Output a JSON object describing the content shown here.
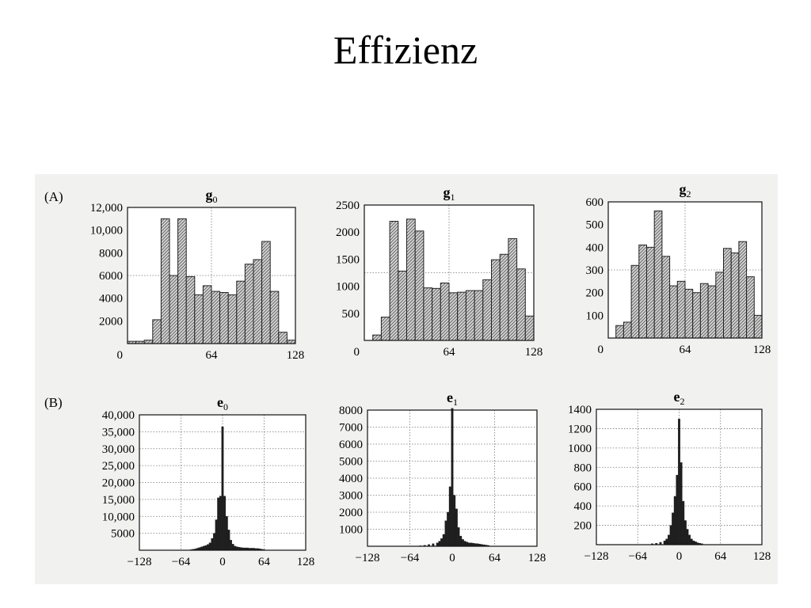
{
  "slide": {
    "title": "Effizienz"
  },
  "panels": [
    {
      "letter": "(A)"
    },
    {
      "letter": "(B)"
    }
  ],
  "chart_data": [
    {
      "type": "bar",
      "row": "A",
      "style": "hatched",
      "title": "g",
      "title_sub": "0",
      "xlim": [
        0,
        128
      ],
      "ylim": [
        0,
        12000
      ],
      "xticks": [
        0,
        64,
        128
      ],
      "xtick_labels": [
        "0",
        "64",
        "128"
      ],
      "yticks": [
        2000,
        4000,
        6000,
        8000,
        10000,
        12000
      ],
      "ytick_labels": [
        "2000",
        "4000",
        "6000",
        "8000",
        "10,000",
        "12,000"
      ],
      "grid": "dotted center lines",
      "bin_width": 6.4,
      "values": [
        200,
        200,
        300,
        2100,
        11000,
        6000,
        11000,
        5900,
        4300,
        5100,
        4600,
        4500,
        4300,
        5500,
        7000,
        7400,
        9000,
        4600,
        1000,
        300
      ]
    },
    {
      "type": "bar",
      "row": "A",
      "style": "hatched",
      "title": "g",
      "title_sub": "1",
      "xlim": [
        0,
        128
      ],
      "ylim": [
        0,
        2500
      ],
      "xticks": [
        0,
        64,
        128
      ],
      "xtick_labels": [
        "0",
        "64",
        "128"
      ],
      "yticks": [
        500,
        1000,
        1500,
        2000,
        2500
      ],
      "ytick_labels": [
        "500",
        "1000",
        "1500",
        "2000",
        "2500"
      ],
      "grid": "dotted center lines",
      "bin_width": 6.4,
      "values": [
        0,
        100,
        430,
        2200,
        1280,
        2240,
        2020,
        970,
        960,
        1060,
        880,
        890,
        920,
        920,
        1120,
        1490,
        1590,
        1880,
        1320,
        450
      ]
    },
    {
      "type": "bar",
      "row": "A",
      "style": "hatched",
      "title": "g",
      "title_sub": "2",
      "xlim": [
        0,
        128
      ],
      "ylim": [
        0,
        600
      ],
      "xticks": [
        0,
        64,
        128
      ],
      "xtick_labels": [
        "0",
        "64",
        "128"
      ],
      "yticks": [
        100,
        200,
        300,
        400,
        500,
        600
      ],
      "ytick_labels": [
        "100",
        "200",
        "300",
        "400",
        "500",
        "600"
      ],
      "grid": "dotted center lines",
      "bin_width": 6.4,
      "values": [
        0,
        55,
        70,
        320,
        410,
        400,
        560,
        360,
        230,
        250,
        215,
        200,
        240,
        230,
        290,
        395,
        375,
        425,
        270,
        100
      ]
    },
    {
      "type": "bar",
      "row": "B",
      "style": "solid",
      "title": "e",
      "title_sub": "0",
      "xlim": [
        -128,
        128
      ],
      "ylim": [
        0,
        40000
      ],
      "xticks": [
        -128,
        -64,
        0,
        64,
        128
      ],
      "xtick_labels": [
        "−128",
        "−64",
        "0",
        "64",
        "128"
      ],
      "yticks": [
        5000,
        10000,
        15000,
        20000,
        25000,
        30000,
        35000,
        40000
      ],
      "ytick_labels": [
        "5000",
        "10,000",
        "15,000",
        "20,000",
        "25,000",
        "30,000",
        "35,000",
        "40,000"
      ],
      "grid": "dotted lines",
      "bin_width": 3.2,
      "bins": [
        {
          "x": -48,
          "y": 200
        },
        {
          "x": -44.8,
          "y": 300
        },
        {
          "x": -41.6,
          "y": 400
        },
        {
          "x": -38.4,
          "y": 600
        },
        {
          "x": -35.2,
          "y": 800
        },
        {
          "x": -32,
          "y": 1000
        },
        {
          "x": -28.8,
          "y": 1200
        },
        {
          "x": -25.6,
          "y": 1400
        },
        {
          "x": -22.4,
          "y": 1700
        },
        {
          "x": -19.2,
          "y": 2200
        },
        {
          "x": -16,
          "y": 3500
        },
        {
          "x": -12.8,
          "y": 5000
        },
        {
          "x": -9.6,
          "y": 9000
        },
        {
          "x": -6.4,
          "y": 15500
        },
        {
          "x": -3.2,
          "y": 16000
        },
        {
          "x": 0,
          "y": 36500
        },
        {
          "x": 3.2,
          "y": 16000
        },
        {
          "x": 6.4,
          "y": 10000
        },
        {
          "x": 9.6,
          "y": 6000
        },
        {
          "x": 12.8,
          "y": 3000
        },
        {
          "x": 16,
          "y": 1800
        },
        {
          "x": 19.2,
          "y": 1200
        },
        {
          "x": 22.4,
          "y": 1000
        },
        {
          "x": 25.6,
          "y": 900
        },
        {
          "x": 28.8,
          "y": 800
        },
        {
          "x": 32,
          "y": 700
        },
        {
          "x": 35.2,
          "y": 700
        },
        {
          "x": 38.4,
          "y": 700
        },
        {
          "x": 41.6,
          "y": 600
        },
        {
          "x": 44.8,
          "y": 600
        },
        {
          "x": 48,
          "y": 600
        },
        {
          "x": 51.2,
          "y": 500
        },
        {
          "x": 54.4,
          "y": 500
        },
        {
          "x": 57.6,
          "y": 400
        },
        {
          "x": 60.8,
          "y": 300
        },
        {
          "x": 64,
          "y": 200
        }
      ]
    },
    {
      "type": "bar",
      "row": "B",
      "style": "solid",
      "title": "e",
      "title_sub": "1",
      "xlim": [
        -128,
        128
      ],
      "ylim": [
        0,
        8000
      ],
      "xticks": [
        -128,
        -64,
        0,
        64,
        128
      ],
      "xtick_labels": [
        "−128",
        "−64",
        "0",
        "64",
        "128"
      ],
      "yticks": [
        1000,
        2000,
        3000,
        4000,
        5000,
        6000,
        7000,
        8000
      ],
      "ytick_labels": [
        "1000",
        "2000",
        "3000",
        "4000",
        "5000",
        "6000",
        "7000",
        "8000"
      ],
      "grid": "dotted lines",
      "bin_width": 3.2,
      "bins": [
        {
          "x": -48,
          "y": 30
        },
        {
          "x": -41.6,
          "y": 60
        },
        {
          "x": -35.2,
          "y": 100
        },
        {
          "x": -28.8,
          "y": 150
        },
        {
          "x": -22.4,
          "y": 200
        },
        {
          "x": -19.2,
          "y": 300
        },
        {
          "x": -16,
          "y": 450
        },
        {
          "x": -12.8,
          "y": 700
        },
        {
          "x": -9.6,
          "y": 1500
        },
        {
          "x": -6.4,
          "y": 2000
        },
        {
          "x": -3.2,
          "y": 3500
        },
        {
          "x": 0,
          "y": 8100
        },
        {
          "x": 3.2,
          "y": 3000
        },
        {
          "x": 6.4,
          "y": 2200
        },
        {
          "x": 9.6,
          "y": 1100
        },
        {
          "x": 12.8,
          "y": 600
        },
        {
          "x": 16,
          "y": 400
        },
        {
          "x": 19.2,
          "y": 300
        },
        {
          "x": 22.4,
          "y": 250
        },
        {
          "x": 25.6,
          "y": 200
        },
        {
          "x": 28.8,
          "y": 200
        },
        {
          "x": 32,
          "y": 180
        },
        {
          "x": 35.2,
          "y": 160
        },
        {
          "x": 38.4,
          "y": 150
        },
        {
          "x": 41.6,
          "y": 130
        },
        {
          "x": 44.8,
          "y": 110
        },
        {
          "x": 48,
          "y": 90
        },
        {
          "x": 51.2,
          "y": 70
        },
        {
          "x": 54.4,
          "y": 50
        }
      ]
    },
    {
      "type": "bar",
      "row": "B",
      "style": "solid",
      "title": "e",
      "title_sub": "2",
      "xlim": [
        -128,
        128
      ],
      "ylim": [
        0,
        1400
      ],
      "xticks": [
        -128,
        -64,
        0,
        64,
        128
      ],
      "xtick_labels": [
        "−128",
        "−64",
        "0",
        "64",
        "128"
      ],
      "yticks": [
        200,
        400,
        600,
        800,
        1000,
        1200,
        1400
      ],
      "ytick_labels": [
        "200",
        "400",
        "600",
        "800",
        "1000",
        "1200",
        "1400"
      ],
      "grid": "dotted lines",
      "bin_width": 3.2,
      "bins": [
        {
          "x": -41.6,
          "y": 10
        },
        {
          "x": -35.2,
          "y": 15
        },
        {
          "x": -28.8,
          "y": 25
        },
        {
          "x": -22.4,
          "y": 40
        },
        {
          "x": -19.2,
          "y": 60
        },
        {
          "x": -16,
          "y": 100
        },
        {
          "x": -12.8,
          "y": 200
        },
        {
          "x": -9.6,
          "y": 330
        },
        {
          "x": -6.4,
          "y": 500
        },
        {
          "x": -3.2,
          "y": 720
        },
        {
          "x": 0,
          "y": 1300
        },
        {
          "x": 3.2,
          "y": 850
        },
        {
          "x": 6.4,
          "y": 450
        },
        {
          "x": 9.6,
          "y": 250
        },
        {
          "x": 12.8,
          "y": 160
        },
        {
          "x": 16,
          "y": 100
        },
        {
          "x": 19.2,
          "y": 60
        },
        {
          "x": 22.4,
          "y": 40
        },
        {
          "x": 25.6,
          "y": 30
        },
        {
          "x": 28.8,
          "y": 20
        },
        {
          "x": 32,
          "y": 15
        },
        {
          "x": 35.2,
          "y": 10
        }
      ]
    }
  ]
}
